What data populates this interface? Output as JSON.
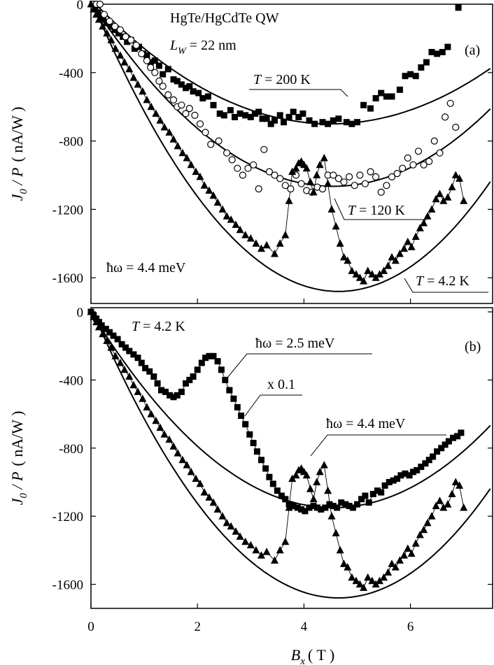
{
  "figure": {
    "xlabel_symbol": "B",
    "xlabel_sub": "x",
    "xlabel_unit": "( T )",
    "ylabel_j": "J",
    "ylabel_sub": "0",
    "ylabel_rest": " / P",
    "ylabel_unit": "( nA/W )"
  },
  "chart_data": [
    {
      "panel": "(a)",
      "type": "scatter",
      "title_line1": "HgTe/HgCdTe QW",
      "lw_symbol": "L",
      "lw_sub": "W",
      "lw_value": " = 22 nm",
      "hw_label": "ħω = 4.4 meV",
      "xlim": [
        0,
        7.5
      ],
      "ylim": [
        -1800,
        0
      ],
      "xticks": [
        0,
        2,
        4,
        6
      ],
      "yticks": [
        0,
        -400,
        -800,
        -1200,
        -1600
      ],
      "series": [
        {
          "name": "T = 200 K",
          "t_sym": "T",
          "t_val": " = 200 K",
          "marker": "square",
          "connected": false,
          "fit": {
            "vertex_x": 4.5,
            "vertex_y": -700,
            "a": 36
          },
          "x": [
            0.03,
            0.08,
            0.13,
            0.18,
            0.23,
            0.3,
            0.38,
            0.45,
            0.52,
            0.6,
            0.68,
            0.75,
            0.82,
            0.9,
            0.98,
            1.05,
            1.12,
            1.2,
            1.28,
            1.35,
            1.45,
            1.55,
            1.62,
            1.7,
            1.78,
            1.85,
            1.92,
            2.02,
            2.1,
            2.2,
            2.3,
            2.42,
            2.5,
            2.62,
            2.7,
            2.8,
            2.9,
            3.0,
            3.08,
            3.15,
            3.22,
            3.3,
            3.38,
            3.45,
            3.55,
            3.62,
            3.72,
            3.8,
            3.9,
            3.98,
            4.1,
            4.2,
            4.35,
            4.45,
            4.55,
            4.65,
            4.8,
            4.9,
            5.0,
            5.12,
            5.25,
            5.35,
            5.45,
            5.55,
            5.65,
            5.8,
            5.9,
            6.0,
            6.1,
            6.2,
            6.3,
            6.4,
            6.5,
            6.6,
            6.7,
            6.9
          ],
          "y": [
            0,
            -20,
            -50,
            -70,
            -90,
            -110,
            -130,
            -150,
            -170,
            -190,
            -220,
            -210,
            -260,
            -250,
            -290,
            -300,
            -340,
            -330,
            -360,
            -410,
            -380,
            -440,
            -450,
            -470,
            -490,
            -480,
            -510,
            -520,
            -550,
            -540,
            -590,
            -640,
            -650,
            -620,
            -660,
            -640,
            -650,
            -660,
            -640,
            -630,
            -670,
            -670,
            -700,
            -680,
            -650,
            -690,
            -660,
            -630,
            -660,
            -640,
            -680,
            -700,
            -690,
            -700,
            -680,
            -670,
            -690,
            -700,
            -690,
            -590,
            -610,
            -550,
            -520,
            -540,
            -540,
            -500,
            -420,
            -410,
            -420,
            -370,
            -340,
            -280,
            -290,
            -280,
            -250,
            -20
          ]
        },
        {
          "name": "T = 120 K",
          "t_sym": "T",
          "t_val": " = 120 K",
          "marker": "circle",
          "connected": false,
          "fit": {
            "vertex_x": 4.55,
            "vertex_y": -1065,
            "a": 52
          },
          "x": [
            0.05,
            0.1,
            0.17,
            0.25,
            0.35,
            0.45,
            0.55,
            0.65,
            0.75,
            0.85,
            0.95,
            1.05,
            1.12,
            1.2,
            1.28,
            1.35,
            1.45,
            1.55,
            1.62,
            1.7,
            1.78,
            1.85,
            1.95,
            2.05,
            2.15,
            2.25,
            2.4,
            2.55,
            2.65,
            2.75,
            2.85,
            2.95,
            3.05,
            3.15,
            3.25,
            3.35,
            3.45,
            3.55,
            3.65,
            3.75,
            3.85,
            3.95,
            4.05,
            4.15,
            4.25,
            4.35,
            4.45,
            4.55,
            4.65,
            4.75,
            4.85,
            4.95,
            5.05,
            5.15,
            5.25,
            5.35,
            5.45,
            5.55,
            5.65,
            5.75,
            5.85,
            5.95,
            6.05,
            6.15,
            6.25,
            6.35,
            6.45,
            6.55,
            6.65,
            6.75,
            6.85
          ],
          "y": [
            0,
            0,
            0,
            -60,
            -100,
            -130,
            -150,
            -190,
            -210,
            -240,
            -290,
            -330,
            -370,
            -400,
            -450,
            -480,
            -530,
            -560,
            -600,
            -590,
            -640,
            -610,
            -650,
            -700,
            -750,
            -820,
            -800,
            -870,
            -910,
            -960,
            -1000,
            -960,
            -940,
            -1080,
            -850,
            -980,
            -1000,
            -1020,
            -1060,
            -1080,
            -1000,
            -1050,
            -1090,
            -1100,
            -1070,
            -1080,
            -1000,
            -1000,
            -1020,
            -1040,
            -1010,
            -1060,
            -1000,
            -1050,
            -980,
            -1010,
            -1100,
            -1060,
            -1010,
            -990,
            -960,
            -900,
            -940,
            -860,
            -940,
            -920,
            -800,
            -870,
            -660,
            -580,
            -720
          ]
        },
        {
          "name": "T = 4.2 K",
          "t_sym": "T",
          "t_val": " = 4.2 K",
          "marker": "triangle",
          "connected": true,
          "fit": {
            "vertex_x": 4.65,
            "vertex_y": -1680,
            "a": 79
          },
          "x": [
            0,
            0.05,
            0.1,
            0.15,
            0.22,
            0.3,
            0.38,
            0.46,
            0.55,
            0.63,
            0.72,
            0.8,
            0.88,
            0.97,
            1.05,
            1.13,
            1.22,
            1.3,
            1.38,
            1.47,
            1.55,
            1.63,
            1.72,
            1.8,
            1.88,
            1.97,
            2.05,
            2.13,
            2.22,
            2.3,
            2.38,
            2.47,
            2.55,
            2.63,
            2.72,
            2.8,
            2.9,
            3.0,
            3.1,
            3.2,
            3.3,
            3.45,
            3.55,
            3.65,
            3.72,
            3.78,
            3.85,
            3.9,
            3.95,
            4.0,
            4.05,
            4.12,
            4.18,
            4.24,
            4.3,
            4.38,
            4.45,
            4.52,
            4.6,
            4.68,
            4.75,
            4.82,
            4.9,
            4.98,
            5.05,
            5.12,
            5.2,
            5.28,
            5.35,
            5.42,
            5.5,
            5.58,
            5.65,
            5.72,
            5.8,
            5.88,
            5.95,
            6.02,
            6.1,
            6.18,
            6.25,
            6.32,
            6.4,
            6.48,
            6.55,
            6.62,
            6.7,
            6.78,
            6.85,
            6.92,
            7.0
          ],
          "y": [
            0,
            -30,
            -60,
            -90,
            -130,
            -170,
            -210,
            -260,
            -300,
            -340,
            -380,
            -430,
            -470,
            -510,
            -560,
            -600,
            -640,
            -680,
            -720,
            -750,
            -790,
            -830,
            -870,
            -900,
            -940,
            -980,
            -1010,
            -1060,
            -1090,
            -1120,
            -1160,
            -1200,
            -1240,
            -1260,
            -1290,
            -1320,
            -1350,
            -1370,
            -1400,
            -1430,
            -1410,
            -1460,
            -1400,
            -1350,
            -1150,
            -980,
            -960,
            -930,
            -920,
            -940,
            -960,
            -1040,
            -1100,
            -1000,
            -940,
            -900,
            -1050,
            -1200,
            -1300,
            -1400,
            -1480,
            -1500,
            -1560,
            -1580,
            -1600,
            -1620,
            -1560,
            -1580,
            -1600,
            -1580,
            -1560,
            -1530,
            -1480,
            -1500,
            -1460,
            -1430,
            -1390,
            -1420,
            -1360,
            -1310,
            -1280,
            -1240,
            -1200,
            -1140,
            -1110,
            -1150,
            -1130,
            -1070,
            -1000,
            -1020,
            -1150
          ]
        }
      ]
    },
    {
      "panel": "(b)",
      "type": "scatter",
      "temp_sym": "T",
      "temp_val": " = 4.2 K",
      "scale_label": "x 0.1",
      "xlim": [
        0,
        7.5
      ],
      "ylim": [
        -1800,
        0
      ],
      "xticks": [
        0,
        2,
        4,
        6
      ],
      "yticks": [
        0,
        -400,
        -800,
        -1200,
        -1600
      ],
      "series": [
        {
          "name": "ħω = 2.5 meV",
          "marker": "square",
          "connected": true,
          "fit": {
            "vertex_x": 4.55,
            "vertex_y": -1150,
            "a": 55.5
          },
          "x": [
            0,
            0.05,
            0.1,
            0.15,
            0.2,
            0.28,
            0.35,
            0.42,
            0.5,
            0.58,
            0.65,
            0.72,
            0.8,
            0.88,
            0.95,
            1.02,
            1.1,
            1.18,
            1.25,
            1.32,
            1.4,
            1.48,
            1.55,
            1.62,
            1.7,
            1.78,
            1.85,
            1.92,
            2.0,
            2.08,
            2.15,
            2.22,
            2.3,
            2.38,
            2.45,
            2.52,
            2.6,
            2.68,
            2.75,
            2.82,
            2.9,
            2.98,
            3.05,
            3.12,
            3.2,
            3.28,
            3.35,
            3.42,
            3.5,
            3.58,
            3.65,
            3.72,
            3.8,
            3.88,
            3.95,
            4.02,
            4.1,
            4.18,
            4.25,
            4.32,
            4.4,
            4.48,
            4.55,
            4.62,
            4.7,
            4.78,
            4.85,
            4.92,
            5.0,
            5.08,
            5.15,
            5.22,
            5.3,
            5.38,
            5.45,
            5.52,
            5.6,
            5.68,
            5.75,
            5.82,
            5.9,
            5.98,
            6.05,
            6.12,
            6.2,
            6.28,
            6.35,
            6.42,
            6.5,
            6.58,
            6.65,
            6.72,
            6.8,
            6.88,
            6.95
          ],
          "y": [
            0,
            -20,
            -40,
            -60,
            -80,
            -100,
            -120,
            -140,
            -160,
            -190,
            -210,
            -230,
            -250,
            -270,
            -300,
            -330,
            -350,
            -380,
            -420,
            -460,
            -470,
            -490,
            -500,
            -490,
            -470,
            -420,
            -400,
            -380,
            -340,
            -300,
            -270,
            -260,
            -260,
            -290,
            -340,
            -400,
            -460,
            -510,
            -560,
            -610,
            -660,
            -720,
            -770,
            -820,
            -870,
            -920,
            -970,
            -1010,
            -1050,
            -1080,
            -1100,
            -1130,
            -1140,
            -1150,
            -1160,
            -1170,
            -1150,
            -1140,
            -1150,
            -1160,
            -1150,
            -1130,
            -1140,
            -1150,
            -1120,
            -1130,
            -1140,
            -1150,
            -1130,
            -1100,
            -1080,
            -1120,
            -1070,
            -1050,
            -1060,
            -1020,
            -1000,
            -990,
            -980,
            -960,
            -950,
            -960,
            -940,
            -930,
            -910,
            -890,
            -870,
            -850,
            -820,
            -800,
            -780,
            -760,
            -740,
            -730,
            -710
          ]
        },
        {
          "name": "ħω = 4.4 meV",
          "marker": "triangle",
          "connected": true,
          "fit": {
            "vertex_x": 4.65,
            "vertex_y": -1680,
            "a": 79
          },
          "x": [
            0,
            0.05,
            0.1,
            0.15,
            0.22,
            0.3,
            0.38,
            0.46,
            0.55,
            0.63,
            0.72,
            0.8,
            0.88,
            0.97,
            1.05,
            1.13,
            1.22,
            1.3,
            1.38,
            1.47,
            1.55,
            1.63,
            1.72,
            1.8,
            1.88,
            1.97,
            2.05,
            2.13,
            2.22,
            2.3,
            2.38,
            2.47,
            2.55,
            2.63,
            2.72,
            2.8,
            2.9,
            3.0,
            3.1,
            3.2,
            3.3,
            3.45,
            3.55,
            3.65,
            3.72,
            3.78,
            3.85,
            3.9,
            3.95,
            4.0,
            4.05,
            4.12,
            4.18,
            4.24,
            4.3,
            4.38,
            4.45,
            4.52,
            4.6,
            4.68,
            4.75,
            4.82,
            4.9,
            4.98,
            5.05,
            5.12,
            5.2,
            5.28,
            5.35,
            5.42,
            5.5,
            5.58,
            5.65,
            5.72,
            5.8,
            5.88,
            5.95,
            6.02,
            6.1,
            6.18,
            6.25,
            6.32,
            6.4,
            6.48,
            6.55,
            6.62,
            6.7,
            6.78,
            6.85,
            6.92,
            7.0
          ],
          "y": [
            0,
            -30,
            -60,
            -90,
            -130,
            -170,
            -210,
            -260,
            -300,
            -340,
            -380,
            -430,
            -470,
            -510,
            -560,
            -600,
            -640,
            -680,
            -720,
            -750,
            -790,
            -830,
            -870,
            -900,
            -940,
            -980,
            -1010,
            -1060,
            -1090,
            -1120,
            -1160,
            -1200,
            -1240,
            -1260,
            -1290,
            -1320,
            -1350,
            -1370,
            -1400,
            -1430,
            -1410,
            -1460,
            -1400,
            -1350,
            -1150,
            -980,
            -960,
            -930,
            -920,
            -940,
            -960,
            -1040,
            -1100,
            -1000,
            -940,
            -900,
            -1050,
            -1200,
            -1300,
            -1400,
            -1480,
            -1500,
            -1560,
            -1580,
            -1600,
            -1620,
            -1560,
            -1580,
            -1600,
            -1580,
            -1560,
            -1530,
            -1480,
            -1500,
            -1460,
            -1430,
            -1390,
            -1420,
            -1360,
            -1310,
            -1280,
            -1240,
            -1200,
            -1140,
            -1110,
            -1150,
            -1130,
            -1070,
            -1000,
            -1020,
            -1150
          ]
        }
      ]
    }
  ]
}
